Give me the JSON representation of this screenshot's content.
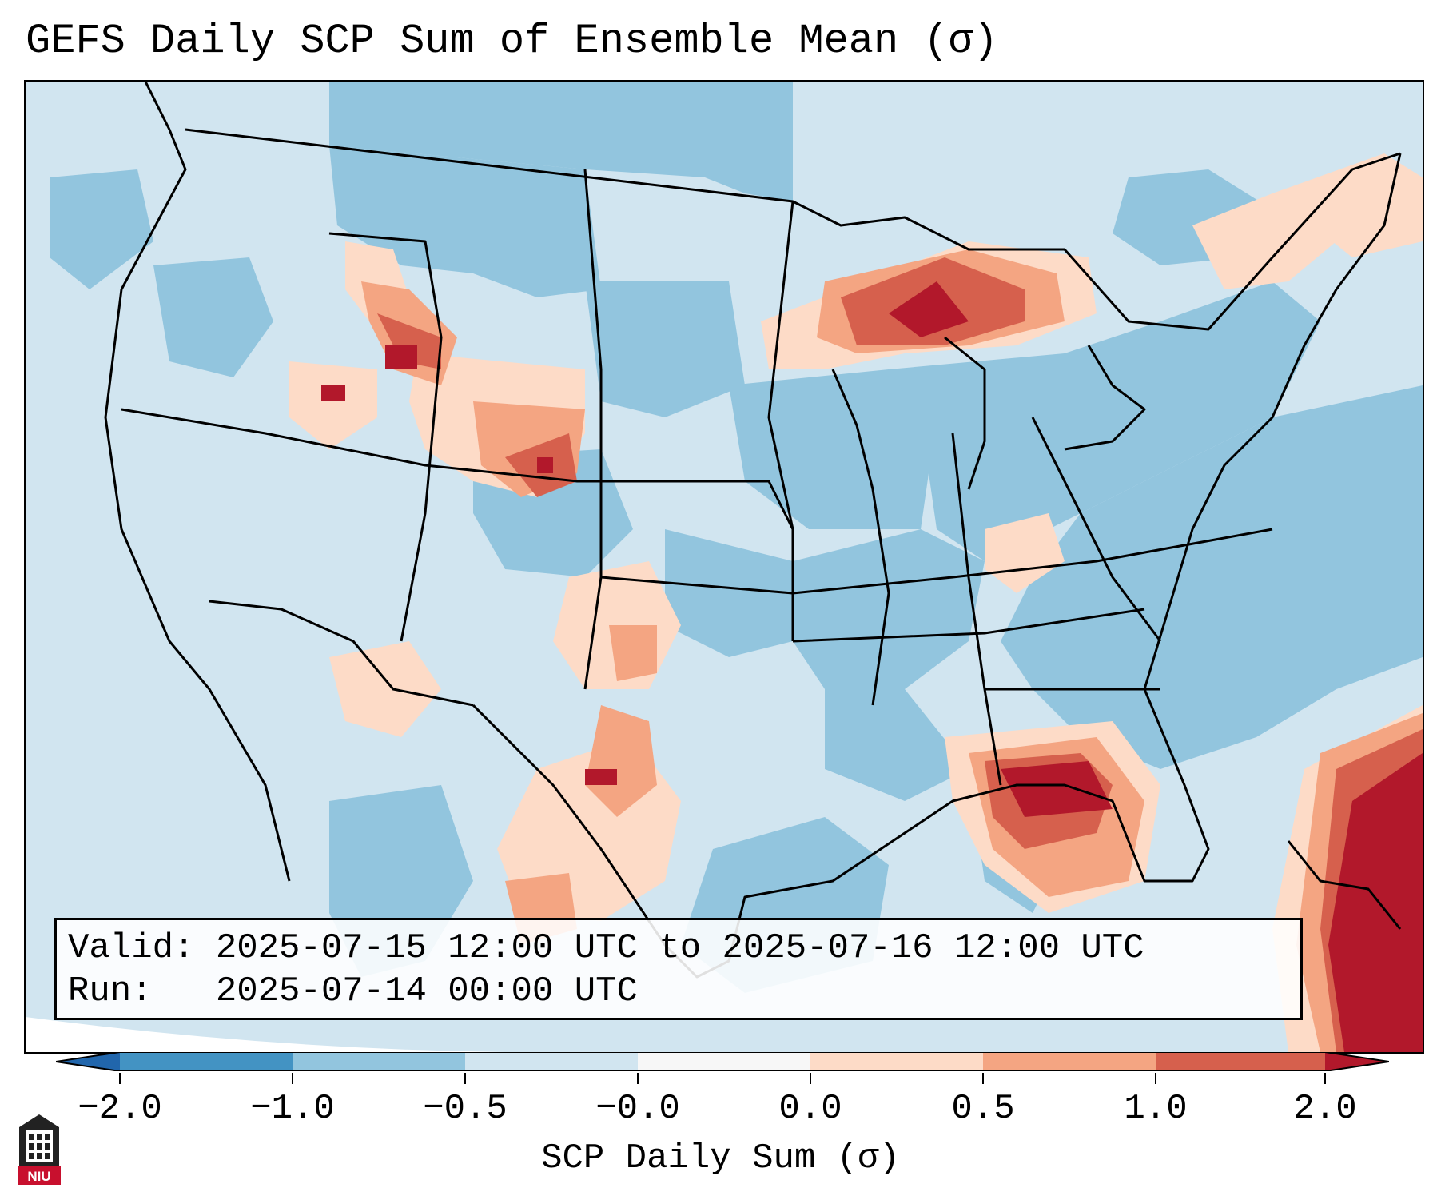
{
  "title": "GEFS Daily SCP Sum of Ensemble Mean (σ)",
  "info": {
    "valid_line": "Valid: 2025-07-15 12:00 UTC to 2025-07-16 12:00 UTC",
    "run_line": "Run:   2025-07-14 00:00 UTC"
  },
  "colorbar": {
    "label": "SCP Daily Sum (σ)",
    "ticks": [
      "−2.0",
      "−1.0",
      "−0.5",
      "−0.0",
      "0.0",
      "0.5",
      "1.0",
      "2.0"
    ],
    "colors": [
      "#4393c3",
      "#92c5de",
      "#d1e5f0",
      "#f7f7f7",
      "#fddbc7",
      "#f4a582",
      "#d6604d",
      "#b2182b"
    ],
    "extend_low_color": "#2166ac",
    "extend_high_color": "#b2182b"
  },
  "logo": {
    "text": "NIU",
    "icon": "niu-logo-icon"
  }
}
